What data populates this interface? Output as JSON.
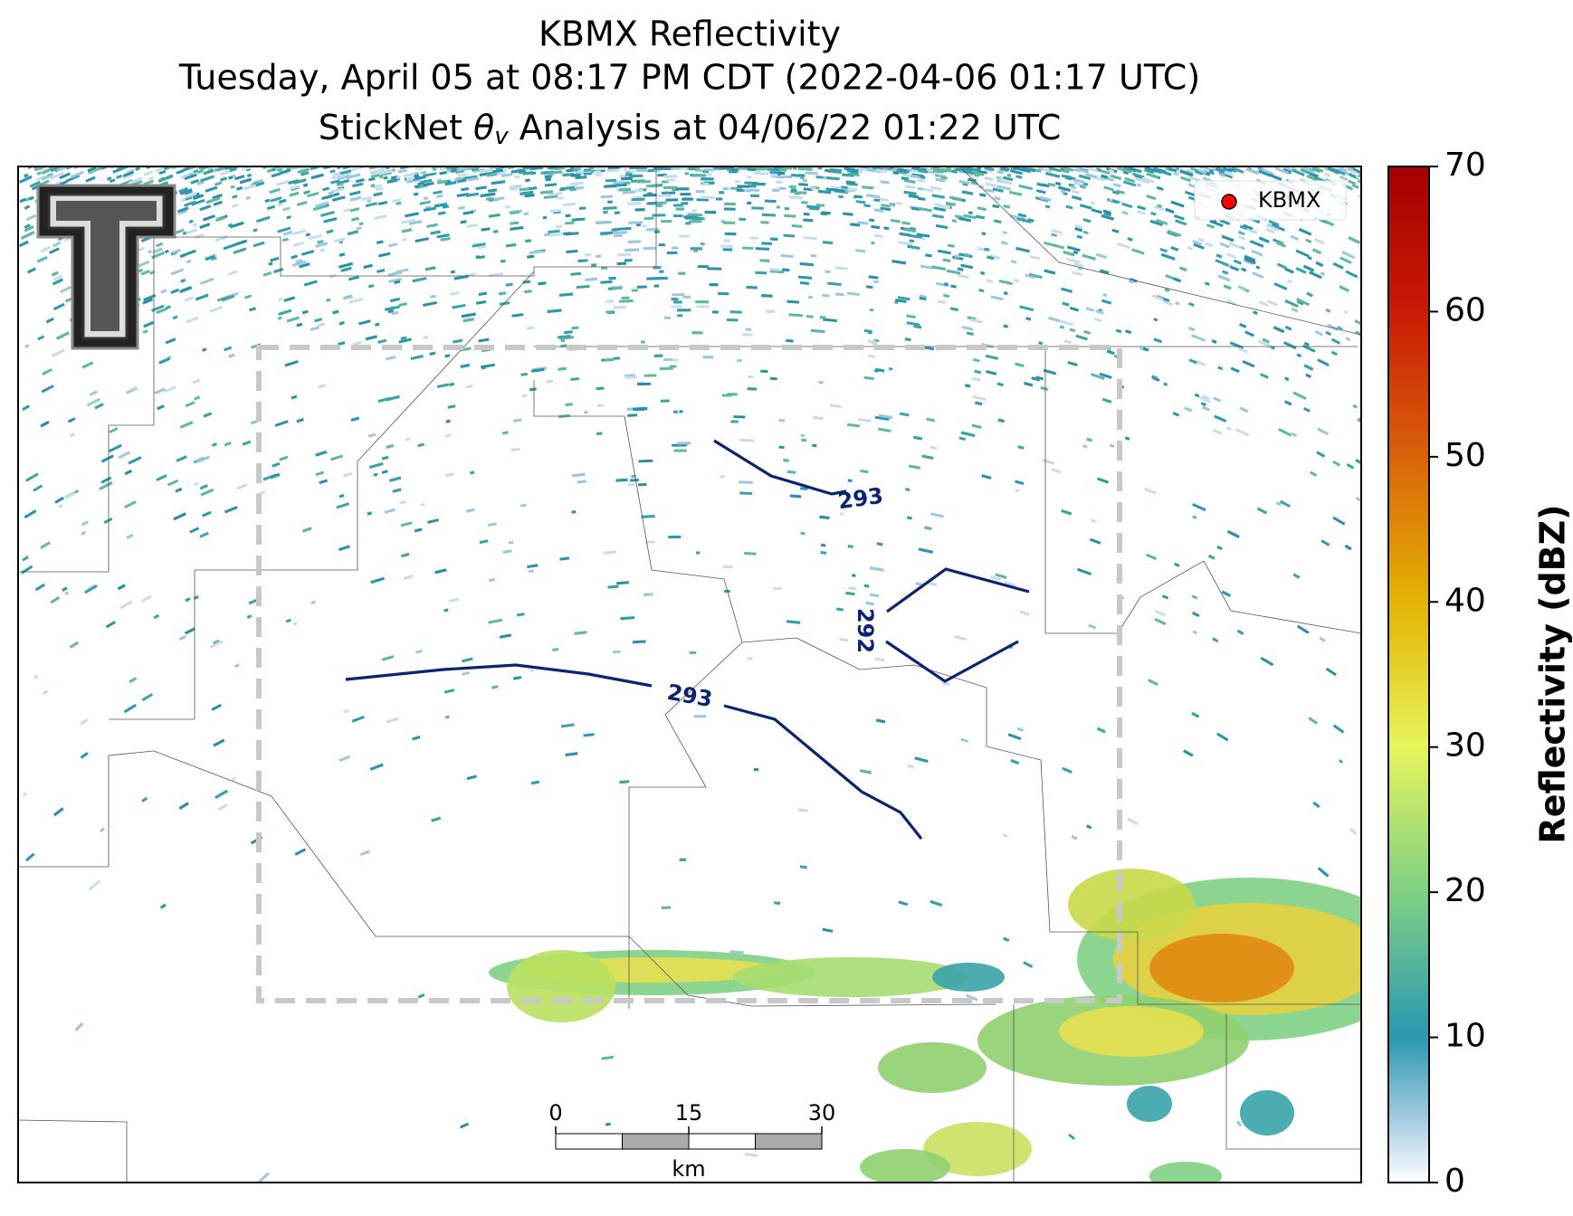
{
  "title": {
    "line1": "KBMX Reflectivity",
    "line2": "Tuesday, April 05 at 08:17 PM CDT (2022-04-06 01:17 UTC)",
    "line3": [
      "StickNet ",
      "θ",
      "v",
      " Analysis at 04/06/22 01:22 UTC"
    ]
  },
  "legend": {
    "label": "KBMX",
    "color": "#ff0000"
  },
  "colorbar": {
    "label": "Reflectivity (dBZ)",
    "lim": [
      0,
      70
    ],
    "ticks": [
      0,
      10,
      20,
      30,
      40,
      50,
      60,
      70
    ]
  },
  "contours": [
    {
      "value": 293
    },
    {
      "value": 292
    },
    {
      "value": 293
    }
  ],
  "scalebar": {
    "lim": [
      0,
      30
    ],
    "ticks": [
      0,
      15,
      30
    ],
    "unit": "km"
  }
}
